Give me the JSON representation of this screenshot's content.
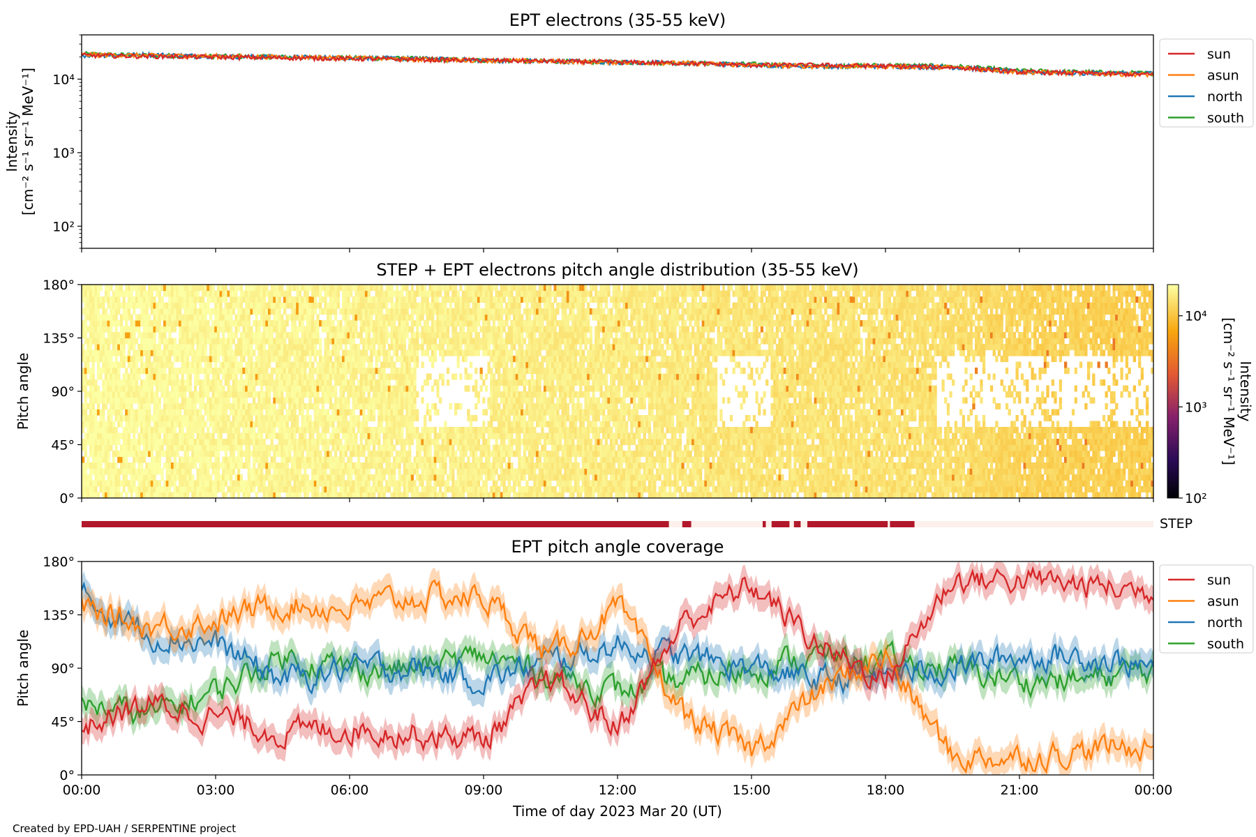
{
  "credit": "Created by EPD-UAH / SERPENTINE project",
  "colors": {
    "sun": "#d62728",
    "asun": "#ff7f0e",
    "north": "#1f77b4",
    "south": "#2ca02c",
    "step_on": "#b2182b",
    "step_off": "#fdf0ea"
  },
  "chart_data": [
    {
      "type": "line",
      "title": "EPT electrons (35-55 keV)",
      "xlabel": "",
      "ylabel": "Intensity",
      "ylabel_units": "[cm⁻² s⁻¹ sr⁻¹ MeV⁻¹]",
      "yscale": "log",
      "ylim": [
        50,
        40000
      ],
      "yticks": [
        {
          "value": 100,
          "label": "10²"
        },
        {
          "value": 1000,
          "label": "10³"
        },
        {
          "value": 10000,
          "label": "10⁴"
        }
      ],
      "x_hours": [
        0,
        1.5,
        3,
        4.5,
        6,
        7.5,
        9,
        10.5,
        12,
        13.5,
        15,
        16.5,
        18,
        19.5,
        21,
        22.5,
        24
      ],
      "series": [
        {
          "name": "sun",
          "values": [
            21000,
            20500,
            20000,
            19500,
            19000,
            18500,
            18000,
            17500,
            17000,
            16500,
            15500,
            15500,
            15000,
            14500,
            12500,
            12000,
            11500
          ]
        },
        {
          "name": "asun",
          "values": [
            21500,
            21000,
            20500,
            20000,
            19500,
            18500,
            18000,
            17500,
            17000,
            16500,
            15500,
            15000,
            15000,
            14500,
            12500,
            12000,
            11500
          ]
        },
        {
          "name": "north",
          "values": [
            21000,
            21500,
            20500,
            20000,
            19500,
            19000,
            18000,
            17500,
            17000,
            16500,
            15500,
            15000,
            15000,
            14500,
            12500,
            12000,
            12000
          ]
        },
        {
          "name": "south",
          "values": [
            22000,
            21000,
            20500,
            20000,
            19500,
            19000,
            18000,
            17500,
            17000,
            16500,
            16000,
            15000,
            15500,
            15000,
            13000,
            12500,
            12000
          ]
        }
      ],
      "legend": "outside-right"
    },
    {
      "type": "heatmap",
      "title": "STEP + EPT electrons pitch angle distribution (35-55 keV)",
      "ylabel": "Pitch angle",
      "ylim": [
        0,
        180
      ],
      "yticks": [
        "0°",
        "45°",
        "90°",
        "135°",
        "180°"
      ],
      "colorbar": {
        "label": "Intensity",
        "units": "[cm⁻² s⁻¹ sr⁻¹ MeV⁻¹]",
        "scale": "log",
        "range": [
          100,
          22000
        ],
        "ticks": [
          "10²",
          "10³",
          "10⁴"
        ]
      },
      "x_hours": [
        0,
        1.5,
        3,
        4.5,
        6,
        7.5,
        9,
        10.5,
        12,
        13.5,
        15,
        16.5,
        18,
        19.5,
        21,
        22.5,
        24
      ],
      "intensity": [
        21000,
        20500,
        20000,
        19500,
        19000,
        18500,
        18000,
        17500,
        17000,
        16500,
        15500,
        15500,
        15000,
        14500,
        12500,
        12000,
        11500
      ]
    },
    {
      "type": "bar",
      "label": "STEP",
      "description_ranges_hours_on": [
        [
          0,
          13.15
        ],
        [
          13.45,
          13.65
        ],
        [
          15.25,
          15.32
        ],
        [
          15.45,
          15.85
        ],
        [
          15.95,
          16.1
        ],
        [
          16.25,
          18.05
        ],
        [
          18.1,
          18.65
        ]
      ]
    },
    {
      "type": "line",
      "title": "EPT pitch angle coverage",
      "xlabel": "Time of day 2023 Mar 20 (UT)",
      "ylabel": "Pitch angle",
      "ylim": [
        0,
        180
      ],
      "yticks": [
        "0°",
        "45°",
        "90°",
        "135°",
        "180°"
      ],
      "xlim_hours": [
        0,
        24
      ],
      "xticks": [
        "00:00",
        "03:00",
        "06:00",
        "09:00",
        "12:00",
        "15:00",
        "18:00",
        "21:00",
        "00:00"
      ],
      "x_hours": [
        0,
        1.5,
        3,
        4.5,
        6,
        7.5,
        9,
        10.5,
        12,
        13.5,
        15,
        16.5,
        18,
        19.5,
        21,
        22.5,
        24
      ],
      "series": [
        {
          "name": "sun",
          "values": [
            40,
            60,
            50,
            35,
            40,
            35,
            30,
            80,
            40,
            130,
            160,
            110,
            80,
            165,
            165,
            160,
            155
          ]
        },
        {
          "name": "asun",
          "values": [
            140,
            125,
            130,
            145,
            140,
            150,
            150,
            100,
            140,
            50,
            20,
            70,
            100,
            15,
            15,
            20,
            25
          ]
        },
        {
          "name": "north",
          "values": [
            150,
            120,
            110,
            80,
            90,
            90,
            80,
            95,
            110,
            100,
            90,
            80,
            85,
            90,
            100,
            100,
            90
          ]
        },
        {
          "name": "south",
          "values": [
            60,
            50,
            70,
            100,
            90,
            90,
            100,
            85,
            70,
            80,
            90,
            100,
            95,
            90,
            80,
            80,
            90
          ]
        }
      ],
      "legend": "outside-right"
    }
  ]
}
